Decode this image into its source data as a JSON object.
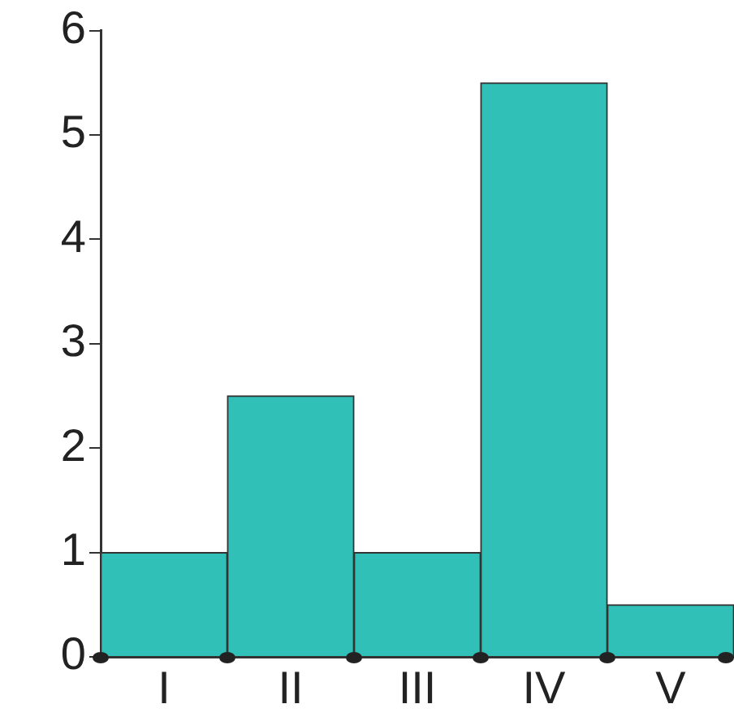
{
  "chart_data": {
    "type": "bar",
    "categories": [
      "I",
      "II",
      "III",
      "IV",
      "V"
    ],
    "values": [
      1,
      2.5,
      1,
      5.5,
      0.5
    ],
    "color": "#30c0b8",
    "ylim": [
      0,
      6
    ],
    "yticks": [
      0,
      1,
      2,
      3,
      4,
      5,
      6
    ],
    "grid": false,
    "legend": false
  }
}
